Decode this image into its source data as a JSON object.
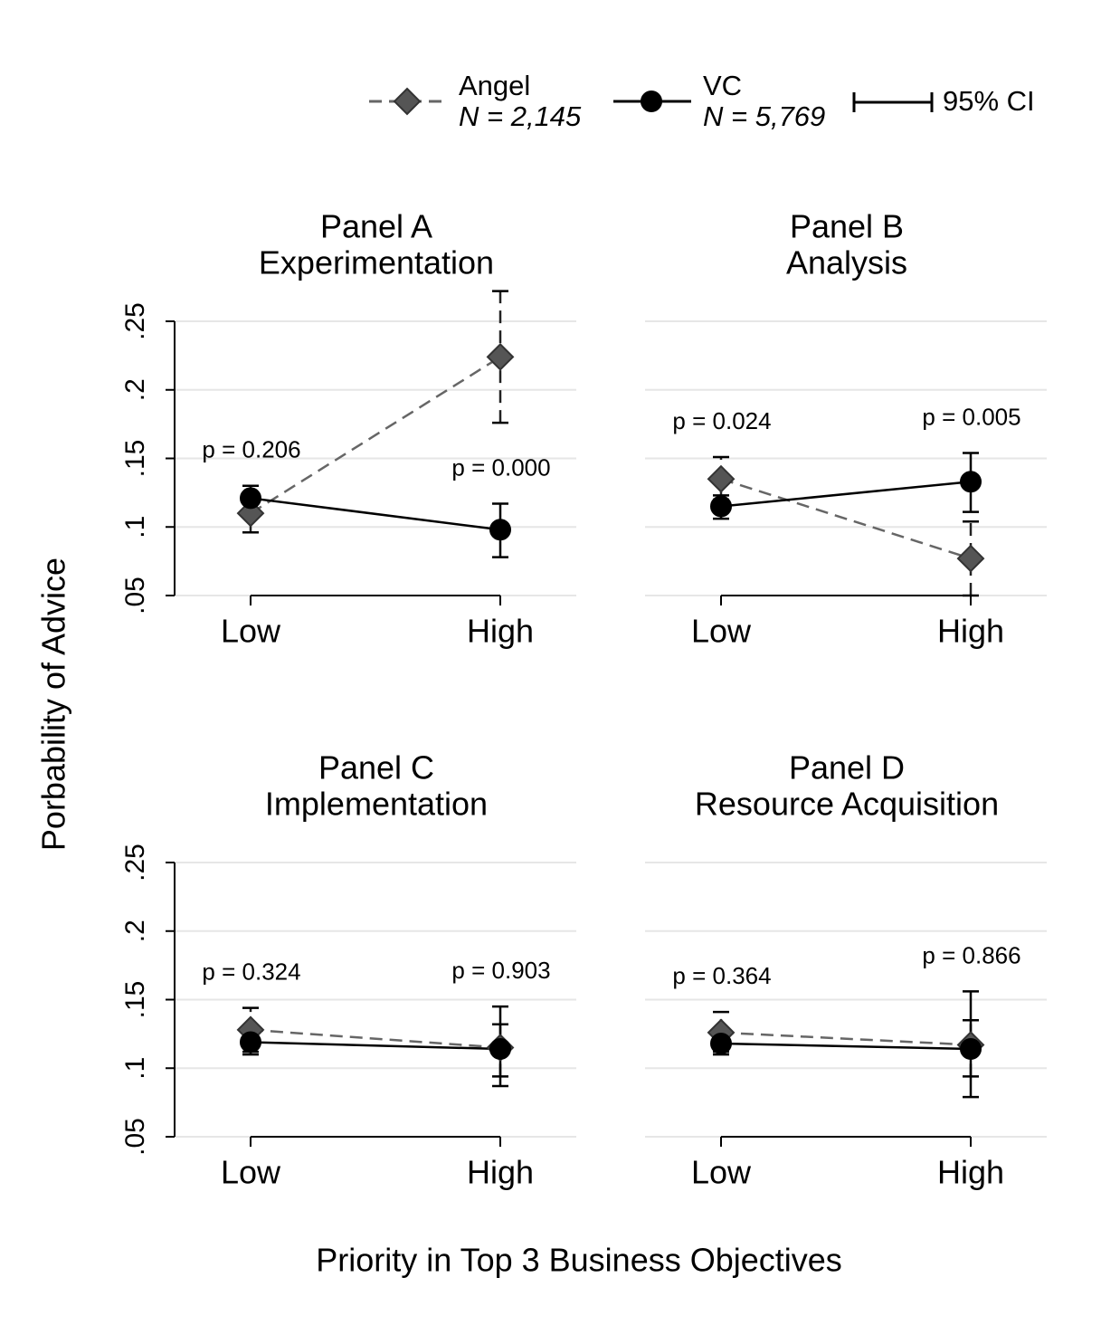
{
  "legend": {
    "entries": [
      {
        "name": "Angel",
        "n": "N = 2,145",
        "color": "#666666",
        "marker_fill": "#555555",
        "dashed": true,
        "marker": "diamond"
      },
      {
        "name": "VC",
        "n": "N = 5,769",
        "color": "#000000",
        "marker_fill": "#000000",
        "dashed": false,
        "marker": "circle"
      }
    ],
    "ci": "95% CI"
  },
  "y_label": "Porbability of Advice",
  "x_label": "Priority in Top 3 Business Objectives",
  "chart_data": [
    {
      "type": "line",
      "title": "Panel A",
      "subtitle": "Experimentation",
      "categories": [
        "Low",
        "High"
      ],
      "ylim": [
        0.05,
        0.25
      ],
      "yticks": [
        {
          "value": 0.05,
          "label": ".05"
        },
        {
          "value": 0.1,
          "label": ".1"
        },
        {
          "value": 0.15,
          "label": ".15"
        },
        {
          "value": 0.2,
          "label": ".2"
        },
        {
          "value": 0.25,
          "label": ".25"
        }
      ],
      "grid": true,
      "series": [
        {
          "values": [
            0.11,
            0.224
          ],
          "ci_low": [
            0.096,
            0.176
          ],
          "ci_high": [
            0.124,
            0.272
          ]
        },
        {
          "values": [
            0.121,
            0.098
          ],
          "ci_low": [
            0.113,
            0.078
          ],
          "ci_high": [
            0.13,
            0.117
          ]
        }
      ],
      "p_values": [
        "p = 0.206",
        "p = 0.000"
      ]
    },
    {
      "type": "line",
      "title": "Panel B",
      "subtitle": "Analysis",
      "categories": [
        "Low",
        "High"
      ],
      "ylim": [
        0.05,
        0.25
      ],
      "yticks": [
        {
          "value": 0.05,
          "label": ".05"
        },
        {
          "value": 0.1,
          "label": ".1"
        },
        {
          "value": 0.15,
          "label": ".15"
        },
        {
          "value": 0.2,
          "label": ".2"
        },
        {
          "value": 0.25,
          "label": ".25"
        }
      ],
      "grid": true,
      "series": [
        {
          "values": [
            0.135,
            0.077
          ],
          "ci_low": [
            0.12,
            0.05
          ],
          "ci_high": [
            0.151,
            0.104
          ]
        },
        {
          "values": [
            0.115,
            0.133
          ],
          "ci_low": [
            0.106,
            0.111
          ],
          "ci_high": [
            0.123,
            0.154
          ]
        }
      ],
      "p_values": [
        "p = 0.024",
        "p = 0.005"
      ]
    },
    {
      "type": "line",
      "title": "Panel C",
      "subtitle": "Implementation",
      "categories": [
        "Low",
        "High"
      ],
      "ylim": [
        0.05,
        0.25
      ],
      "yticks": [
        {
          "value": 0.05,
          "label": ".05"
        },
        {
          "value": 0.1,
          "label": ".1"
        },
        {
          "value": 0.15,
          "label": ".15"
        },
        {
          "value": 0.2,
          "label": ".2"
        },
        {
          "value": 0.25,
          "label": ".25"
        }
      ],
      "grid": true,
      "series": [
        {
          "values": [
            0.128,
            0.115
          ],
          "ci_low": [
            0.112,
            0.094
          ],
          "ci_high": [
            0.144,
            0.132
          ]
        },
        {
          "values": [
            0.119,
            0.114
          ],
          "ci_low": [
            0.11,
            0.087
          ],
          "ci_high": [
            0.127,
            0.145
          ]
        }
      ],
      "p_values": [
        "p = 0.324",
        "p = 0.903"
      ]
    },
    {
      "type": "line",
      "title": "Panel D",
      "subtitle": "Resource Acquisition",
      "categories": [
        "Low",
        "High"
      ],
      "ylim": [
        0.05,
        0.25
      ],
      "yticks": [
        {
          "value": 0.05,
          "label": ".05"
        },
        {
          "value": 0.1,
          "label": ".1"
        },
        {
          "value": 0.15,
          "label": ".15"
        },
        {
          "value": 0.2,
          "label": ".2"
        },
        {
          "value": 0.25,
          "label": ".25"
        }
      ],
      "grid": true,
      "series": [
        {
          "values": [
            0.126,
            0.117
          ],
          "ci_low": [
            0.112,
            0.094
          ],
          "ci_high": [
            0.141,
            0.135
          ]
        },
        {
          "values": [
            0.118,
            0.114
          ],
          "ci_low": [
            0.11,
            0.079
          ],
          "ci_high": [
            0.127,
            0.156
          ]
        }
      ],
      "p_values": [
        "p = 0.364",
        "p = 0.866"
      ]
    }
  ]
}
